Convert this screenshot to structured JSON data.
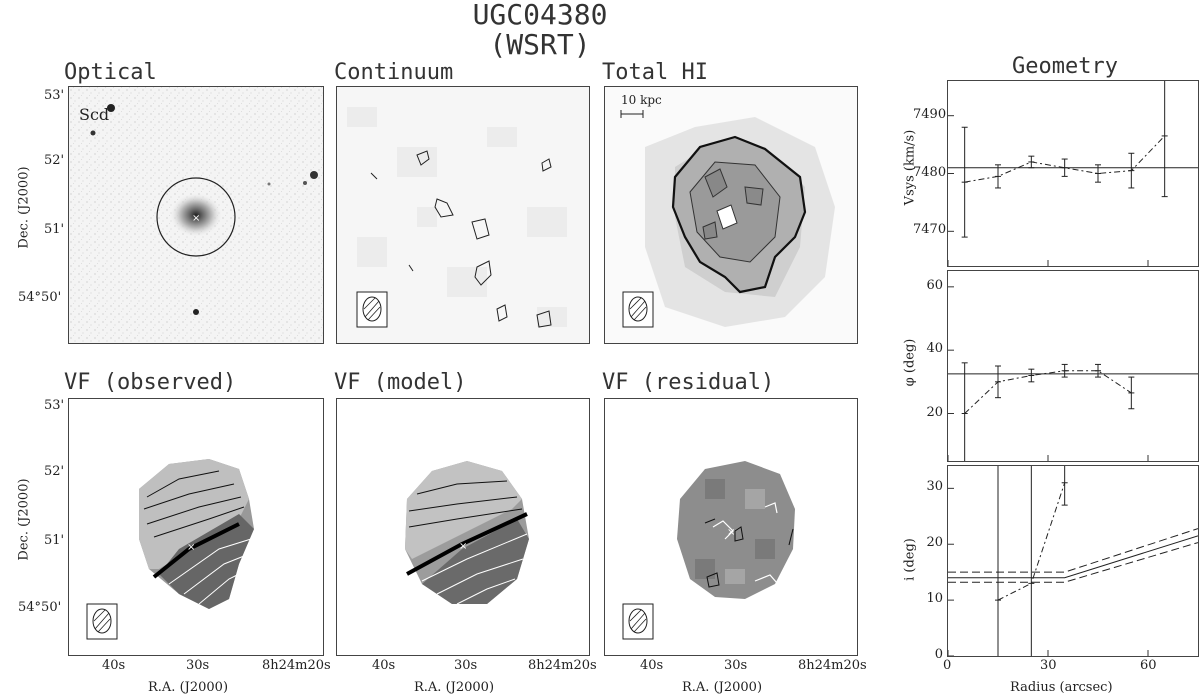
{
  "figure": {
    "title": "UGC04380",
    "subtitle": "(WSRT)"
  },
  "panels": {
    "optical": {
      "title": "Optical",
      "type_label": "Scd"
    },
    "continuum": {
      "title": "Continuum"
    },
    "totalhi": {
      "title": "Total HI",
      "scalebar": "10 kpc"
    },
    "vf_observed": {
      "title": "VF (observed)"
    },
    "vf_model": {
      "title": "VF (model)"
    },
    "vf_residual": {
      "title": "VF (residual)"
    }
  },
  "axes": {
    "dec_label": "Dec. (J2000)",
    "ra_label": "R.A. (J2000)",
    "dec_ticks": [
      "53'",
      "52'",
      "51'",
      "54°50'"
    ],
    "ra_ticks": [
      "40s",
      "30s",
      "8h24m20s"
    ]
  },
  "geometry": {
    "title": "Geometry",
    "xlabel": "Radius (arcsec)",
    "x_ticks": [
      "0",
      "30",
      "60"
    ]
  },
  "chart_data": [
    {
      "type": "line",
      "title": "",
      "ylabel": "Vsys (km/s)",
      "xlabel": "",
      "xlim": [
        0,
        75
      ],
      "ylim": [
        7464,
        7496
      ],
      "y_ticks": [
        7470,
        7480,
        7490
      ],
      "reference_line": 7481,
      "series": [
        {
          "x": [
            5,
            15,
            25,
            35,
            45,
            55,
            65
          ],
          "y": [
            7478.5,
            7479.5,
            7482,
            7481,
            7480,
            7480.5,
            7486.5
          ],
          "err": [
            9.5,
            2,
            1,
            1.5,
            1.5,
            3,
            10.5
          ]
        }
      ]
    },
    {
      "type": "line",
      "title": "",
      "ylabel": "φ (deg)",
      "xlabel": "",
      "xlim": [
        0,
        75
      ],
      "ylim": [
        5,
        65
      ],
      "y_ticks": [
        20,
        40,
        60
      ],
      "reference_line": 32.5,
      "series": [
        {
          "x": [
            5,
            15,
            25,
            35,
            45,
            55
          ],
          "y": [
            20,
            30,
            32,
            33.5,
            33.5,
            26.5
          ],
          "err": [
            16,
            5,
            2,
            2,
            2,
            5
          ]
        }
      ]
    },
    {
      "type": "line",
      "title": "",
      "ylabel": "i (deg)",
      "xlabel": "Radius (arcsec)",
      "xlim": [
        0,
        75
      ],
      "ylim": [
        0,
        34
      ],
      "y_ticks": [
        0,
        10,
        20,
        30
      ],
      "series": [
        {
          "x": [
            15,
            25,
            35
          ],
          "y": [
            10,
            13,
            31
          ],
          "err": [
            0,
            0,
            4
          ]
        }
      ]
    }
  ]
}
